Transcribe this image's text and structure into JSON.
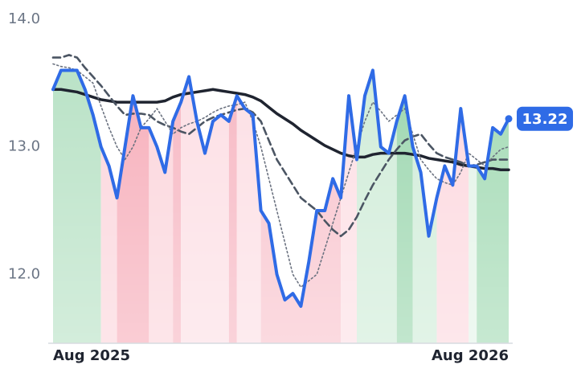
{
  "chart_data": {
    "type": "line",
    "categories": [
      "Aug 2025",
      null,
      null,
      null,
      null,
      null,
      null,
      null,
      null,
      null,
      null,
      null,
      null,
      null,
      null,
      null,
      null,
      null,
      null,
      null,
      null,
      null,
      null,
      null,
      null,
      null,
      null,
      null,
      null,
      null,
      null,
      null,
      null,
      null,
      null,
      null,
      null,
      null,
      null,
      null,
      null,
      null,
      null,
      null,
      null,
      null,
      null,
      null,
      null,
      null,
      null,
      null,
      null,
      null,
      null,
      null,
      null,
      "Aug 2026"
    ],
    "ylim": [
      11.46,
      14.08
    ],
    "yticks": [
      {
        "value": 12,
        "label": "12.0"
      },
      {
        "value": 13,
        "label": "13.0"
      },
      {
        "value": 14,
        "label": "14.0"
      }
    ],
    "series": [
      {
        "color": "#2f6be6",
        "style": "solid",
        "width": 4,
        "values": [
          13.45,
          13.6,
          13.6,
          13.6,
          13.45,
          13.25,
          13.0,
          12.85,
          12.6,
          13.0,
          13.4,
          13.15,
          13.15,
          13.0,
          12.8,
          13.2,
          13.35,
          13.55,
          13.2,
          12.95,
          13.2,
          13.25,
          13.2,
          13.4,
          13.3,
          13.25,
          12.5,
          12.4,
          12.0,
          11.8,
          11.85,
          11.75,
          12.1,
          12.5,
          12.5,
          12.75,
          12.6,
          13.4,
          12.9,
          13.4,
          13.6,
          13.0,
          12.95,
          13.2,
          13.4,
          13.0,
          12.8,
          12.3,
          12.6,
          12.85,
          12.7,
          13.3,
          12.85,
          12.85,
          12.75,
          13.15,
          13.1,
          13.22
        ]
      },
      {
        "color": "#6b7280",
        "style": "dotted",
        "width": 1.6,
        "values": [
          13.65,
          13.63,
          13.62,
          13.6,
          13.55,
          13.5,
          13.32,
          13.15,
          13.0,
          12.9,
          13.0,
          13.15,
          13.22,
          13.3,
          13.2,
          13.1,
          13.15,
          13.18,
          13.2,
          13.23,
          13.27,
          13.3,
          13.32,
          13.33,
          13.35,
          13.2,
          13.0,
          12.75,
          12.5,
          12.25,
          12.0,
          11.9,
          11.95,
          12.0,
          12.2,
          12.4,
          12.6,
          12.8,
          13.0,
          13.2,
          13.35,
          13.28,
          13.2,
          13.25,
          13.3,
          13.1,
          12.9,
          12.82,
          12.75,
          12.72,
          12.7,
          12.8,
          12.95,
          12.9,
          12.85,
          12.92,
          12.98,
          13.0
        ]
      },
      {
        "color": "#4b5563",
        "style": "dashed",
        "width": 2.6,
        "values": [
          13.7,
          13.7,
          13.72,
          13.7,
          13.62,
          13.55,
          13.48,
          13.4,
          13.32,
          13.25,
          13.26,
          13.26,
          13.25,
          13.2,
          13.17,
          13.15,
          13.12,
          13.1,
          13.15,
          13.2,
          13.23,
          13.25,
          13.27,
          13.29,
          13.3,
          13.27,
          13.2,
          13.05,
          12.9,
          12.8,
          12.7,
          12.6,
          12.55,
          12.5,
          12.42,
          12.35,
          12.3,
          12.35,
          12.45,
          12.58,
          12.7,
          12.8,
          12.9,
          12.98,
          13.05,
          13.08,
          13.1,
          13.02,
          12.95,
          12.92,
          12.9,
          12.88,
          12.85,
          12.86,
          12.88,
          12.9,
          12.9,
          12.9
        ]
      },
      {
        "color": "#1f2430",
        "style": "solid",
        "width": 3.5,
        "values": [
          13.45,
          13.45,
          13.44,
          13.43,
          13.41,
          13.39,
          13.37,
          13.36,
          13.35,
          13.35,
          13.35,
          13.35,
          13.35,
          13.35,
          13.36,
          13.39,
          13.41,
          13.42,
          13.43,
          13.44,
          13.45,
          13.44,
          13.43,
          13.42,
          13.41,
          13.39,
          13.36,
          13.31,
          13.26,
          13.22,
          13.18,
          13.13,
          13.09,
          13.05,
          13.01,
          12.98,
          12.95,
          12.93,
          12.92,
          12.92,
          12.94,
          12.95,
          12.95,
          12.95,
          12.95,
          12.94,
          12.93,
          12.91,
          12.9,
          12.89,
          12.88,
          12.86,
          12.85,
          12.84,
          12.83,
          12.83,
          12.82,
          12.82
        ]
      }
    ],
    "bands": [
      {
        "from": 0,
        "to": 6,
        "color": "#b4e0c2"
      },
      {
        "from": 6,
        "to": 8,
        "color": "#fbd3da"
      },
      {
        "from": 8,
        "to": 12,
        "color": "#f6a9b6"
      },
      {
        "from": 12,
        "to": 15,
        "color": "#fbd3da"
      },
      {
        "from": 15,
        "to": 16,
        "color": "#f6b3bf"
      },
      {
        "from": 16,
        "to": 22,
        "color": "#fcdde3"
      },
      {
        "from": 22,
        "to": 23,
        "color": "#f6b3bf"
      },
      {
        "from": 23,
        "to": 26,
        "color": "#fcdde3"
      },
      {
        "from": 26,
        "to": 36,
        "color": "#f8c0ca"
      },
      {
        "from": 36,
        "to": 38,
        "color": "#fcdde3"
      },
      {
        "from": 38,
        "to": 43,
        "color": "#cdebd6"
      },
      {
        "from": 43,
        "to": 45,
        "color": "#96d4aa"
      },
      {
        "from": 45,
        "to": 48,
        "color": "#cdebd6"
      },
      {
        "from": 48,
        "to": 52,
        "color": "#fcd6dd"
      },
      {
        "from": 52,
        "to": 53,
        "color": "#e2f3e7"
      },
      {
        "from": 53,
        "to": 57,
        "color": "#9ed8b0"
      }
    ]
  }
}
